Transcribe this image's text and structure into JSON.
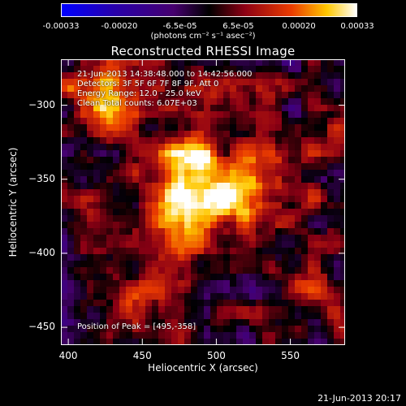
{
  "colorbar": {
    "tick_labels": [
      "-0.00033",
      "-0.00020",
      "-6.5e-05",
      "6.5e-05",
      "0.00020",
      "0.00033"
    ],
    "tick_values": [
      -0.00033,
      -0.0002,
      -6.5e-05,
      6.5e-05,
      0.0002,
      0.00033
    ],
    "unit_label": "(photons cm⁻² s⁻¹ asec⁻²)"
  },
  "chart_data": {
    "type": "heatmap",
    "title": "Reconstructed RHESSI Image",
    "xlabel": "Heliocentric X (arcsec)",
    "ylabel": "Heliocentric Y (arcsec)",
    "xlim": [
      395,
      587
    ],
    "ylim": [
      -462,
      -269
    ],
    "x_ticks": [
      400,
      450,
      500,
      550
    ],
    "y_ticks": [
      -300,
      -350,
      -400,
      -450
    ],
    "colormap": "blue-purple-red-yellow-white",
    "value_range": [
      -0.00033,
      0.00033
    ],
    "peak": [
      495,
      -358
    ],
    "annotations": [
      "21-Jun-2013 14:38:48.000 to 14:42:56.000",
      "Detectors: 3F 5F 6F 7F 8F 9F, Att 0",
      "Energy Range: 12.0 - 25.0 keV",
      "Clean     Total counts: 6.07E+03"
    ],
    "peak_label": "Position of Peak = [495,-358]"
  },
  "footer": {
    "timestamp": "21-Jun-2013 20:17"
  }
}
